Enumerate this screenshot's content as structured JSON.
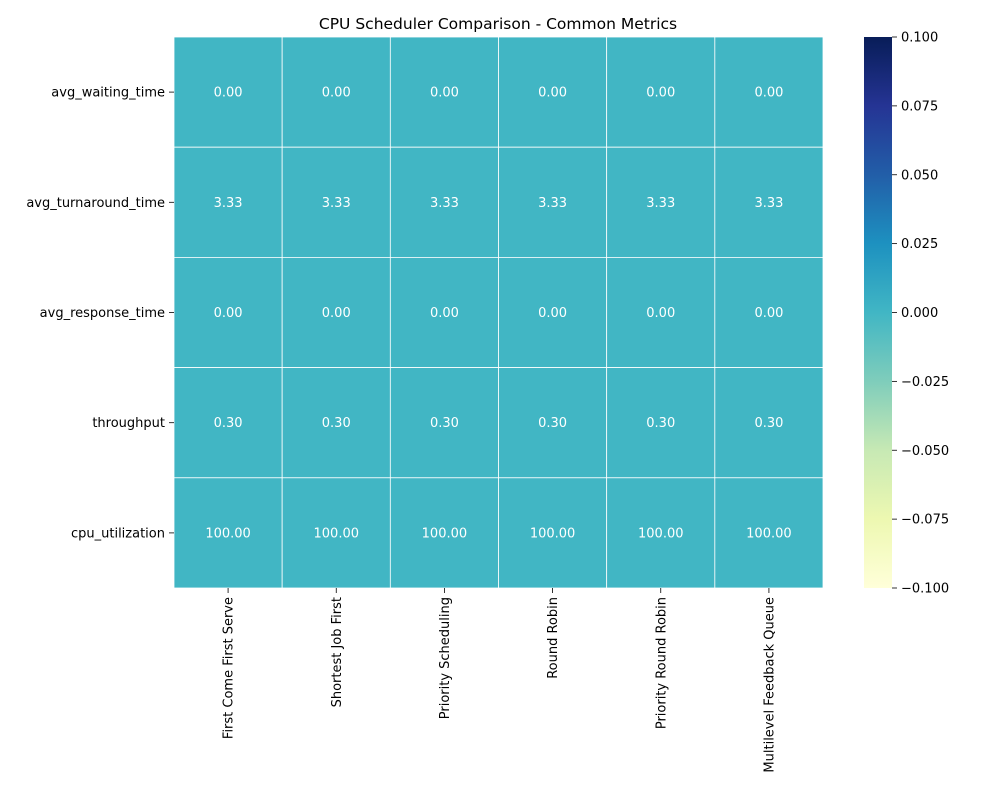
{
  "chart_data": {
    "type": "heatmap",
    "title": "CPU Scheduler Comparison - Common Metrics",
    "xlabel": "",
    "ylabel": "",
    "rows": [
      "avg_waiting_time",
      "avg_turnaround_time",
      "avg_response_time",
      "throughput",
      "cpu_utilization"
    ],
    "columns": [
      "First Come First Serve",
      "Shortest Job First",
      "Priority Scheduling",
      "Round Robin",
      "Priority Round Robin",
      "Multilevel Feedback Queue"
    ],
    "values": [
      [
        0.0,
        0.0,
        0.0,
        0.0,
        0.0,
        0.0
      ],
      [
        3.33,
        3.33,
        3.33,
        3.33,
        3.33,
        3.33
      ],
      [
        0.0,
        0.0,
        0.0,
        0.0,
        0.0,
        0.0
      ],
      [
        0.3,
        0.3,
        0.3,
        0.3,
        0.3,
        0.3
      ],
      [
        100.0,
        100.0,
        100.0,
        100.0,
        100.0,
        100.0
      ]
    ],
    "cell_labels": [
      [
        "0.00",
        "0.00",
        "0.00",
        "0.00",
        "0.00",
        "0.00"
      ],
      [
        "3.33",
        "3.33",
        "3.33",
        "3.33",
        "3.33",
        "3.33"
      ],
      [
        "0.00",
        "0.00",
        "0.00",
        "0.00",
        "0.00",
        "0.00"
      ],
      [
        "0.30",
        "0.30",
        "0.30",
        "0.30",
        "0.30",
        "0.30"
      ],
      [
        "100.00",
        "100.00",
        "100.00",
        "100.00",
        "100.00",
        "100.00"
      ]
    ],
    "colorbar": {
      "colormap": "YlGnBu",
      "range": [
        -0.1,
        0.1
      ],
      "ticks": [
        0.1,
        0.075,
        0.05,
        0.025,
        0.0,
        -0.025,
        -0.05,
        -0.075,
        -0.1
      ],
      "tick_labels": [
        "0.100",
        "0.075",
        "0.050",
        "0.025",
        "0.000",
        "−0.025",
        "−0.050",
        "−0.075",
        "−0.100"
      ]
    },
    "cell_color": "#41b6c4",
    "cell_text_color": "#ffffff",
    "grid": true
  }
}
